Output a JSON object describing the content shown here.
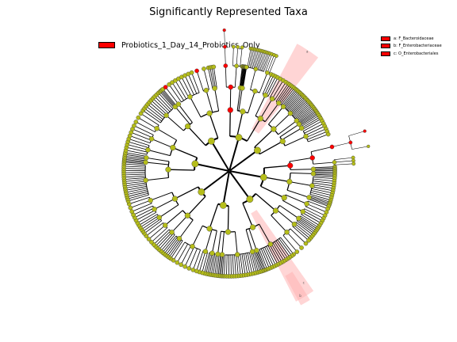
{
  "chart_data": {
    "type": "cladogram",
    "title": "Significantly Represented Taxa",
    "class_legend": [
      {
        "name": "Probiotics_1_Day_14_Probiotics_Only",
        "color": "#ff0000"
      }
    ],
    "clade_legend": [
      {
        "label": "a: F_Bacteroidaceae",
        "color": "#ff0000"
      },
      {
        "label": "b: F_Enterobacteriaceae",
        "color": "#ff0000"
      },
      {
        "label": "c: O_Enterobacteriales",
        "color": "#ff0000"
      }
    ],
    "clade_markers": [
      "a",
      "b",
      "c"
    ],
    "node_colors": {
      "significant": "#ff0000",
      "non_significant": "#b5bd1a"
    },
    "highlight_color": "#ffb3b3"
  }
}
